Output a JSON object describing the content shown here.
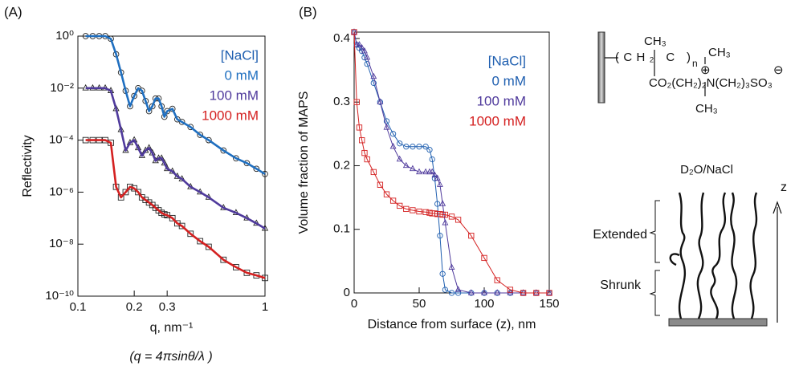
{
  "chart_data": [
    {
      "type": "line",
      "panel_label": "(A)",
      "xlabel": "q, nm⁻¹",
      "ylabel": "Reflectivity",
      "note": "(q = 4πsinθ/λ )",
      "log_x": true,
      "log_y": true,
      "xlim": [
        0.1,
        1
      ],
      "ylim": [
        1e-10,
        1
      ],
      "xticks": [
        0.1,
        0.2,
        0.3,
        1
      ],
      "yticks": [
        {
          "value": 1,
          "label": "10⁰"
        },
        {
          "value": 0.01,
          "label": "10⁻²"
        },
        {
          "value": 0.0001,
          "label": "10⁻⁴"
        },
        {
          "value": 1e-06,
          "label": "10⁻⁶"
        },
        {
          "value": 1e-08,
          "label": "10⁻⁸"
        },
        {
          "value": 1e-10,
          "label": "10⁻¹⁰"
        }
      ],
      "legend": "upper right",
      "legend_title": "[NaCl]",
      "legend_title_color": "#1f5fb0",
      "x": [
        0.11,
        0.12,
        0.13,
        0.14,
        0.15,
        0.16,
        0.17,
        0.18,
        0.19,
        0.2,
        0.21,
        0.22,
        0.23,
        0.24,
        0.25,
        0.26,
        0.27,
        0.28,
        0.29,
        0.3,
        0.32,
        0.34,
        0.36,
        0.4,
        0.45,
        0.5,
        0.6,
        0.7,
        0.8,
        0.9,
        1.0
      ],
      "series": [
        {
          "name": "0 mM",
          "color": "#1f6fc0",
          "marker": "circle",
          "marker_color": "#222222",
          "values": [
            1,
            1,
            1,
            1,
            0.79,
            0.2,
            0.04,
            0.0079,
            0.002,
            0.005,
            0.01,
            0.0079,
            0.0032,
            0.0013,
            0.002,
            0.004,
            0.004,
            0.002,
            0.00079,
            0.0013,
            0.0016,
            0.00063,
            0.0005,
            0.00032,
            0.00016,
            0.0001,
            4e-05,
            2e-05,
            1.3e-05,
            7.9e-06,
            5e-06
          ]
        },
        {
          "name": "100 mM",
          "color": "#4f3a9c",
          "marker": "triangle",
          "marker_color": "#222222",
          "values": [
            0.01,
            0.01,
            0.01,
            0.01,
            0.0079,
            0.0016,
            0.00025,
            4e-05,
            7.9e-05,
            0.0001,
            5e-05,
            2.5e-05,
            4e-05,
            5e-05,
            3.2e-05,
            1.6e-05,
            2e-05,
            2e-05,
            1.3e-05,
            7.9e-06,
            6.3e-06,
            4e-06,
            3.2e-06,
            1.6e-06,
            1e-06,
            6.3e-07,
            2.5e-07,
            1.6e-07,
            1e-07,
            6.3e-08,
            4e-08
          ]
        },
        {
          "name": "1000 mM",
          "color": "#d42020",
          "marker": "square",
          "marker_color": "#222222",
          "values": [
            0.0001,
            0.0001,
            0.0001,
            0.0001,
            7.9e-05,
            1.6e-06,
            6.3e-07,
            1e-06,
            1.6e-06,
            1.4e-06,
            1e-06,
            6.3e-07,
            5e-07,
            4e-07,
            3.2e-07,
            2.5e-07,
            2e-07,
            1.6e-07,
            1.4e-07,
            1.3e-07,
            1e-07,
            6.3e-08,
            5e-08,
            2.5e-08,
            1.3e-08,
            7.9e-09,
            2.5e-09,
            1.3e-09,
            7.9e-10,
            6.3e-10,
            5e-10
          ]
        }
      ]
    },
    {
      "type": "line",
      "panel_label": "(B)",
      "xlabel": "Distance from surface (z), nm",
      "ylabel": "Volume fraction of MAPS",
      "log_x": false,
      "log_y": false,
      "xlim": [
        0,
        150
      ],
      "ylim": [
        0,
        0.41
      ],
      "xticks": [
        0,
        50,
        100,
        150
      ],
      "yticks": [
        0,
        0.1,
        0.2,
        0.3,
        0.4
      ],
      "legend": "upper right",
      "legend_title": "[NaCl]",
      "legend_title_color": "#1f5fb0",
      "x": [
        0,
        2,
        4,
        6,
        8,
        10,
        15,
        20,
        25,
        30,
        35,
        40,
        45,
        50,
        55,
        58,
        60,
        62,
        64,
        66,
        68,
        70,
        75,
        80,
        90,
        100,
        110,
        120,
        130,
        140,
        150
      ],
      "series": [
        {
          "name": "0 mM",
          "color": "#1f5fb0",
          "marker": "circle",
          "marker_color": "#1f5fb0",
          "values": [
            0.41,
            0.39,
            0.385,
            0.38,
            0.37,
            0.36,
            0.33,
            0.3,
            0.27,
            0.25,
            0.235,
            0.23,
            0.23,
            0.23,
            0.23,
            0.225,
            0.21,
            0.18,
            0.14,
            0.09,
            0.03,
            0.005,
            0,
            0,
            0,
            0,
            0,
            0,
            0,
            0,
            0
          ]
        },
        {
          "name": "100 mM",
          "color": "#4f3a9c",
          "marker": "triangle",
          "marker_color": "#4f3a9c",
          "values": [
            0.41,
            0.39,
            0.39,
            0.385,
            0.38,
            0.37,
            0.34,
            0.3,
            0.26,
            0.23,
            0.21,
            0.2,
            0.195,
            0.19,
            0.19,
            0.19,
            0.19,
            0.185,
            0.18,
            0.17,
            0.14,
            0.11,
            0.04,
            0.005,
            0,
            0,
            0,
            0,
            0,
            0,
            0
          ]
        },
        {
          "name": "1000 mM",
          "color": "#d42020",
          "marker": "square",
          "marker_color": "#d42020",
          "values": [
            0.41,
            0.3,
            0.26,
            0.24,
            0.22,
            0.21,
            0.19,
            0.17,
            0.155,
            0.145,
            0.137,
            0.132,
            0.13,
            0.128,
            0.127,
            0.126,
            0.125,
            0.125,
            0.124,
            0.124,
            0.123,
            0.123,
            0.12,
            0.115,
            0.09,
            0.055,
            0.02,
            0.005,
            0,
            0,
            0
          ]
        }
      ]
    }
  ],
  "diagram": {
    "formula": {
      "methyl_top": "CH₃",
      "backbone": "(CH₂ C )",
      "repeat": "n",
      "side_chain": "CO₂(CH₂)₂N(CH₂)₃SO₃",
      "plus": "⊕",
      "minus": "⊖",
      "methyl_n_top": "CH₃",
      "methyl_n_bottom": "CH₃"
    },
    "solvent": "D₂O/NaCl",
    "axis": "z",
    "extended": "Extended",
    "shrunk": "Shrunk"
  }
}
